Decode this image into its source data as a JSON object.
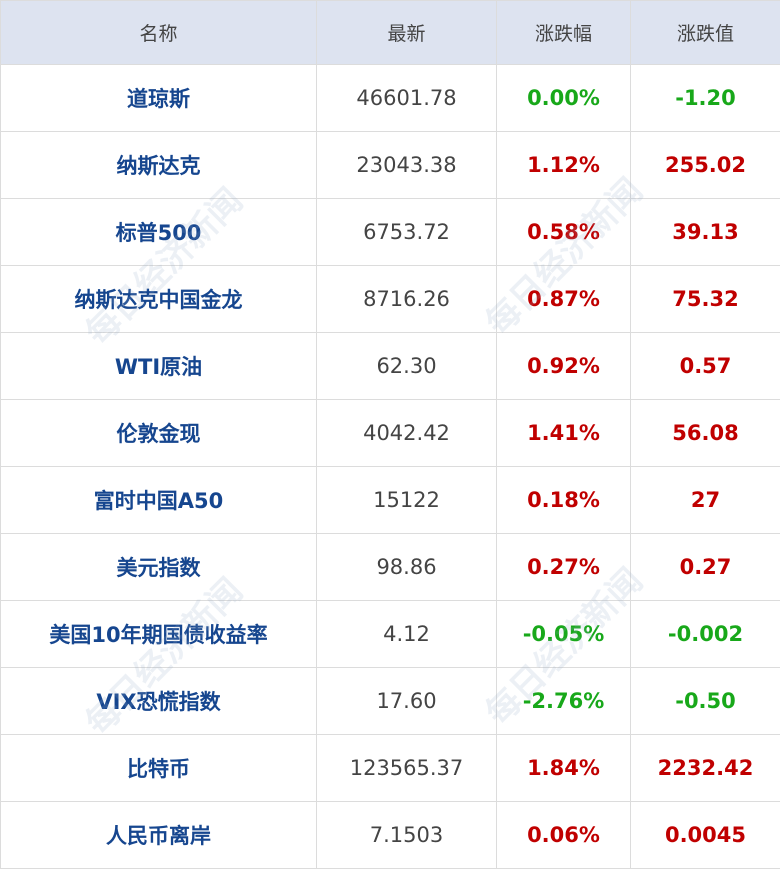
{
  "table": {
    "header": [
      "名称",
      "最新",
      "涨跌幅",
      "涨跌值"
    ],
    "rows": [
      [
        "道琼斯",
        "46601.78",
        "0.00%",
        "-1.20"
      ],
      [
        "纳斯达克",
        "23043.38",
        "1.12%",
        "255.02"
      ],
      [
        "标普500",
        "6753.72",
        "0.58%",
        "39.13"
      ],
      [
        "纳斯达克中国金龙",
        "8716.26",
        "0.87%",
        "75.32"
      ],
      [
        "WTI原油",
        "62.30",
        "0.92%",
        "0.57"
      ],
      [
        "伦敦金现",
        "4042.42",
        "1.41%",
        "56.08"
      ],
      [
        "富时中国A50",
        "15122",
        "0.18%",
        "27"
      ],
      [
        "美元指数",
        "98.86",
        "0.27%",
        "0.27"
      ],
      [
        "美国10年期国债收益率",
        "4.12",
        "-0.05%",
        "-0.002"
      ],
      [
        "VIX恐慌指数",
        "17.60",
        "-2.76%",
        "-0.50"
      ],
      [
        "比特币",
        "123565.37",
        "1.84%",
        "2232.42"
      ],
      [
        "人民币离岸",
        "7.1503",
        "0.06%",
        "0.0045"
      ]
    ],
    "row_colors": [
      "#18a81a",
      "#c00000",
      "#c00000",
      "#c00000",
      "#c00000",
      "#c00000",
      "#c00000",
      "#c00000",
      "#18a81a",
      "#18a81a",
      "#c00000",
      "#c00000"
    ]
  },
  "watermark": "每日经济新闻"
}
